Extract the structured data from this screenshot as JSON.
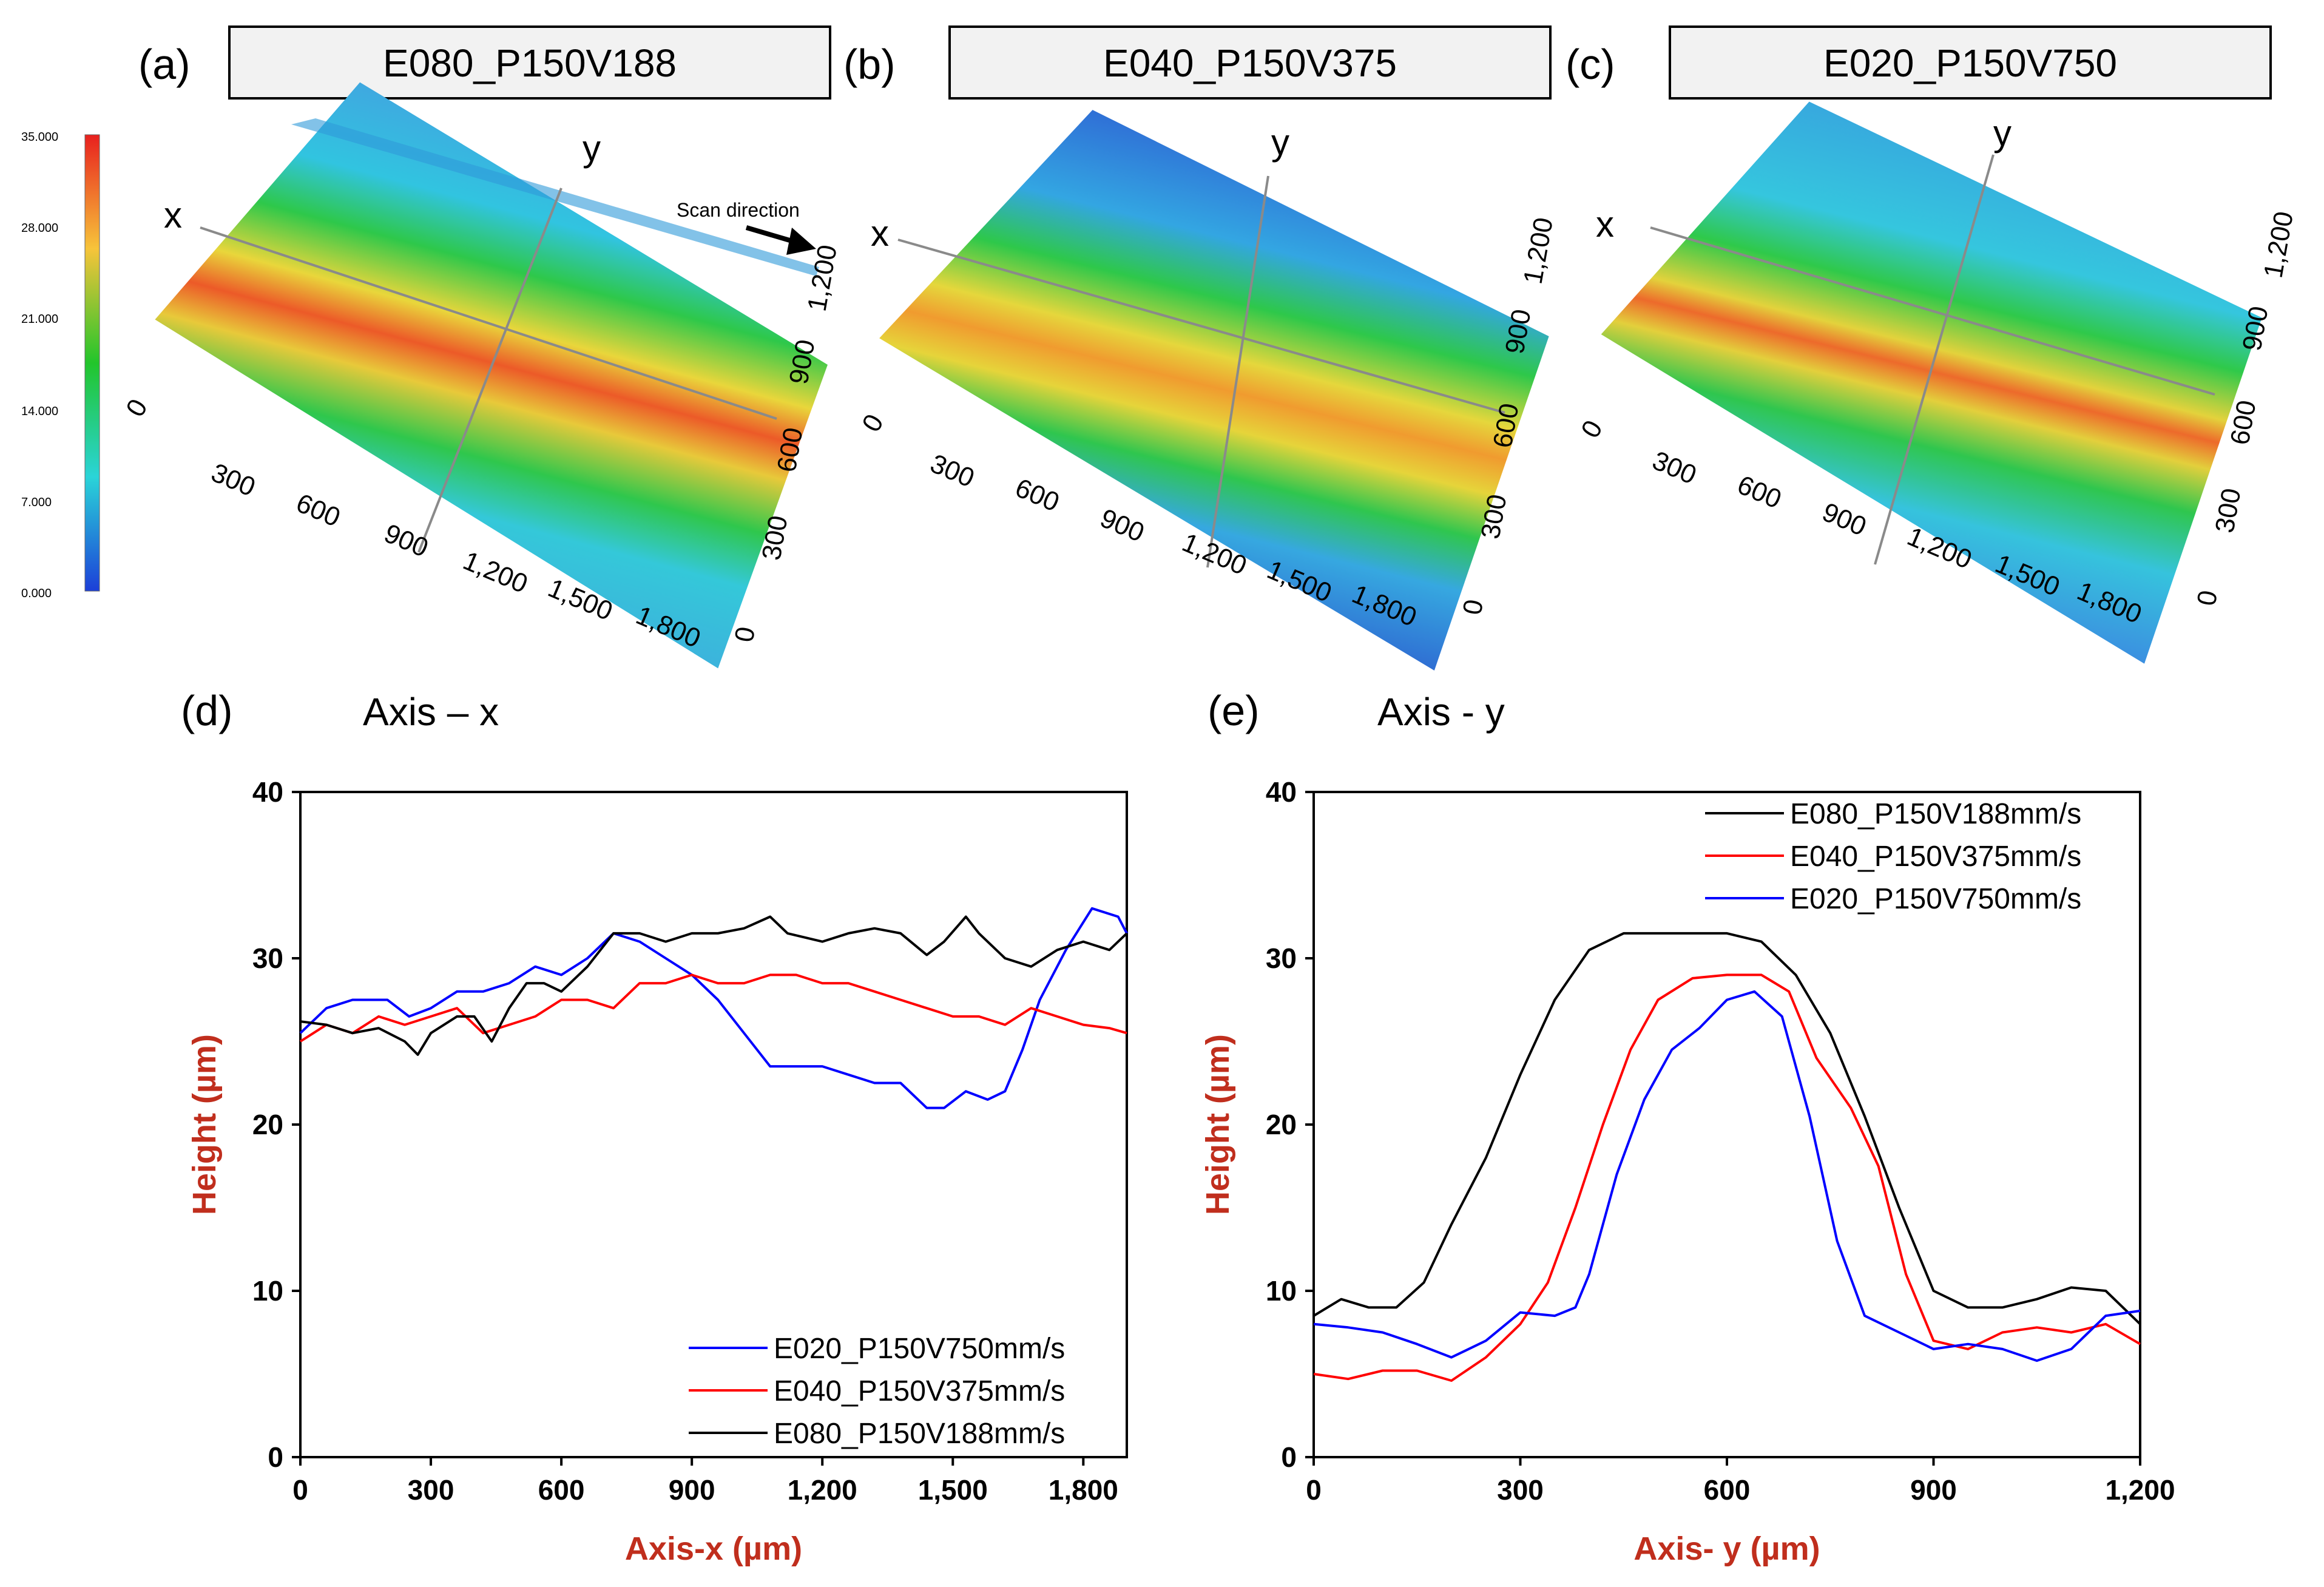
{
  "panels": [
    {
      "letter": "(a)",
      "title": "E080_P150V188",
      "x_label": "x",
      "y_label": "y",
      "x_ticks": [
        "0",
        "300",
        "600",
        "900",
        "1,200",
        "1,500",
        "1,800"
      ],
      "y_ticks": [
        "0",
        "300",
        "600",
        "900",
        "1,200"
      ],
      "annotation": "Scan direction"
    },
    {
      "letter": "(b)",
      "title": "E040_P150V375",
      "x_label": "x",
      "y_label": "y",
      "x_ticks": [
        "0",
        "300",
        "600",
        "900",
        "1,200",
        "1,500",
        "1,800"
      ],
      "y_ticks": [
        "0",
        "300",
        "600",
        "900",
        "1,200"
      ]
    },
    {
      "letter": "(c)",
      "title": "E020_P150V750",
      "x_label": "x",
      "y_label": "y",
      "x_ticks": [
        "0",
        "300",
        "600",
        "900",
        "1,200",
        "1,500",
        "1,800"
      ],
      "y_ticks": [
        "0",
        "300",
        "600",
        "900",
        "1,200"
      ]
    }
  ],
  "colorbar": {
    "ticks": [
      "35.000",
      "28.000",
      "21.000",
      "14.000",
      "7.000",
      "0.000"
    ],
    "colors": [
      "#e8201e",
      "#f7c43a",
      "#22c52b",
      "#2ad4d8",
      "#1c3fd8"
    ]
  },
  "series_colors": {
    "E080": "#000000",
    "E040": "#ff0000",
    "E020": "#0000ff"
  },
  "chart_data": [
    {
      "type": "line",
      "panel": "(d)",
      "title": "Axis – x",
      "xlabel": "Axis-x (µm)",
      "ylabel": "Height (µm)",
      "xlim": [
        0,
        1900
      ],
      "ylim": [
        0,
        40
      ],
      "x_ticks": [
        "0",
        "300",
        "600",
        "900",
        "1,200",
        "1,500",
        "1,800"
      ],
      "y_ticks": [
        "0",
        "10",
        "20",
        "30",
        "40"
      ],
      "legend_position": "bottom-right",
      "series": [
        {
          "name": "E020_P150V750mm/s",
          "color": "#0000ff",
          "x": [
            0,
            60,
            120,
            200,
            250,
            300,
            360,
            420,
            480,
            540,
            600,
            660,
            720,
            780,
            840,
            900,
            960,
            1020,
            1080,
            1140,
            1200,
            1260,
            1320,
            1380,
            1440,
            1480,
            1530,
            1580,
            1620,
            1660,
            1700,
            1760,
            1820,
            1880,
            1900
          ],
          "y": [
            25.5,
            27,
            27.5,
            27.5,
            26.5,
            27,
            28,
            28,
            28.5,
            29.5,
            29,
            30,
            31.5,
            31,
            30,
            29,
            27.5,
            25.5,
            23.5,
            23.5,
            23.5,
            23,
            22.5,
            22.5,
            21,
            21,
            22,
            21.5,
            22,
            24.5,
            27.5,
            30.5,
            33,
            32.5,
            31.5
          ]
        },
        {
          "name": "E040_P150V375mm/s",
          "color": "#ff0000",
          "x": [
            0,
            60,
            120,
            180,
            240,
            300,
            360,
            420,
            480,
            540,
            600,
            660,
            720,
            780,
            840,
            900,
            960,
            1020,
            1080,
            1140,
            1200,
            1260,
            1320,
            1380,
            1440,
            1500,
            1560,
            1620,
            1680,
            1740,
            1800,
            1860,
            1900
          ],
          "y": [
            25,
            26,
            25.5,
            26.5,
            26,
            26.5,
            27,
            25.5,
            26,
            26.5,
            27.5,
            27.5,
            27,
            28.5,
            28.5,
            29,
            28.5,
            28.5,
            29,
            29,
            28.5,
            28.5,
            28,
            27.5,
            27,
            26.5,
            26.5,
            26,
            27,
            26.5,
            26,
            25.8,
            25.5
          ]
        },
        {
          "name": "E080_P150V188mm/s",
          "color": "#000000",
          "x": [
            0,
            60,
            120,
            180,
            240,
            270,
            300,
            360,
            400,
            440,
            480,
            520,
            560,
            600,
            660,
            720,
            780,
            840,
            900,
            960,
            1020,
            1080,
            1120,
            1200,
            1260,
            1320,
            1380,
            1440,
            1480,
            1530,
            1560,
            1620,
            1680,
            1740,
            1800,
            1860,
            1900
          ],
          "y": [
            26.2,
            26,
            25.5,
            25.8,
            25,
            24.2,
            25.5,
            26.5,
            26.5,
            25,
            27,
            28.5,
            28.5,
            28,
            29.5,
            31.5,
            31.5,
            31,
            31.5,
            31.5,
            31.8,
            32.5,
            31.5,
            31,
            31.5,
            31.8,
            31.5,
            30.2,
            31,
            32.5,
            31.5,
            30,
            29.5,
            30.5,
            31,
            30.5,
            31.5
          ]
        }
      ]
    },
    {
      "type": "line",
      "panel": "(e)",
      "title": "Axis - y",
      "xlabel": "Axis- y (µm)",
      "ylabel": "Height (µm)",
      "xlim": [
        0,
        1200
      ],
      "ylim": [
        0,
        40
      ],
      "x_ticks": [
        "0",
        "300",
        "600",
        "900",
        "1,200"
      ],
      "y_ticks": [
        "0",
        "10",
        "20",
        "30",
        "40"
      ],
      "legend_position": "top-right",
      "series": [
        {
          "name": "E080_P150V188mm/s",
          "color": "#000000",
          "x": [
            0,
            40,
            80,
            120,
            160,
            200,
            250,
            300,
            350,
            400,
            450,
            500,
            550,
            600,
            650,
            700,
            750,
            800,
            850,
            900,
            950,
            1000,
            1050,
            1100,
            1150,
            1200
          ],
          "y": [
            8.5,
            9.5,
            9,
            9,
            10.5,
            14,
            18,
            23,
            27.5,
            30.5,
            31.5,
            31.5,
            31.5,
            31.5,
            31,
            29,
            25.5,
            20.5,
            15,
            10,
            9,
            9,
            9.5,
            10.2,
            10,
            8
          ]
        },
        {
          "name": "E040_P150V375mm/s",
          "color": "#ff0000",
          "x": [
            0,
            50,
            100,
            150,
            200,
            250,
            300,
            340,
            380,
            420,
            460,
            500,
            550,
            600,
            650,
            690,
            730,
            780,
            820,
            860,
            900,
            950,
            1000,
            1050,
            1100,
            1150,
            1200
          ],
          "y": [
            5,
            4.7,
            5.2,
            5.2,
            4.6,
            6,
            8,
            10.5,
            15,
            20,
            24.5,
            27.5,
            28.8,
            29,
            29,
            28,
            24,
            21,
            17.5,
            11,
            7,
            6.5,
            7.5,
            7.8,
            7.5,
            8,
            6.8
          ]
        },
        {
          "name": "E020_P150V750mm/s",
          "color": "#0000ff",
          "x": [
            0,
            50,
            100,
            150,
            200,
            250,
            300,
            350,
            380,
            400,
            440,
            480,
            520,
            560,
            600,
            640,
            680,
            720,
            760,
            800,
            850,
            900,
            950,
            1000,
            1050,
            1100,
            1150,
            1200
          ],
          "y": [
            8,
            7.8,
            7.5,
            6.8,
            6,
            7,
            8.7,
            8.5,
            9,
            11,
            17,
            21.5,
            24.5,
            25.8,
            27.5,
            28,
            26.5,
            20.5,
            13,
            8.5,
            7.5,
            6.5,
            6.8,
            6.5,
            5.8,
            6.5,
            8.5,
            8.8
          ]
        }
      ]
    }
  ]
}
